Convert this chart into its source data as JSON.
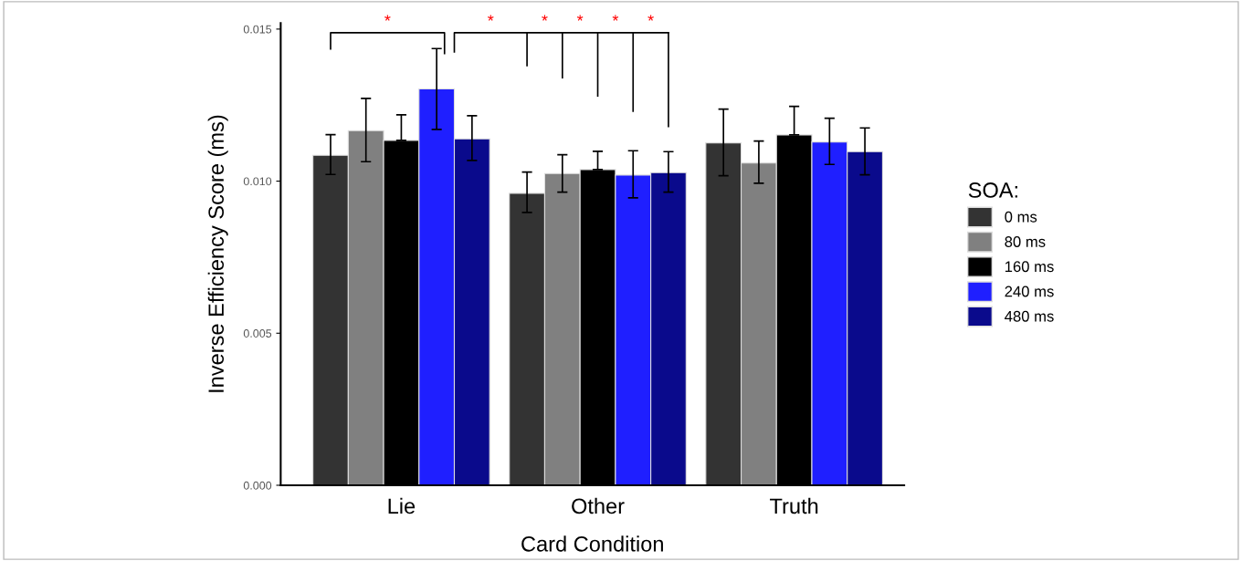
{
  "chart_data": {
    "type": "bar",
    "xlabel": "Card Condition",
    "ylabel": "Inverse Efficiency Score (ms)",
    "legend_title": "SOA:",
    "legend": "right",
    "grid": false,
    "categories": [
      "Lie",
      "Other",
      "Truth"
    ],
    "ylim": [
      0,
      0.0152
    ],
    "yticks": [
      {
        "value": 0,
        "label": "0.000"
      },
      {
        "value": 0.005,
        "label": "0.005"
      },
      {
        "value": 0.01,
        "label": "0.010"
      },
      {
        "value": 0.015,
        "label": "0.015"
      }
    ],
    "series": [
      {
        "name": "0 ms",
        "color": "#333333",
        "values": [
          0.01085,
          0.0096,
          0.01126
        ],
        "errors": [
          [
            0.01022,
            0.01153
          ],
          [
            0.00897,
            0.0103
          ],
          [
            0.01018,
            0.01237
          ]
        ]
      },
      {
        "name": "80 ms",
        "color": "#808080",
        "values": [
          0.01166,
          0.01025,
          0.0106
        ],
        "errors": [
          [
            0.01064,
            0.01272
          ],
          [
            0.00964,
            0.01087
          ],
          [
            0.00993,
            0.01132
          ]
        ]
      },
      {
        "name": "160 ms",
        "color": "#000000",
        "values": [
          0.01134,
          0.01038,
          0.01152
        ],
        "errors": [
          [
            0.01134,
            0.01218
          ],
          [
            0.01038,
            0.01098
          ],
          [
            0.01152,
            0.01246
          ]
        ]
      },
      {
        "name": "240 ms",
        "color": "#1f1fff",
        "values": [
          0.01303,
          0.0102,
          0.01129
        ],
        "errors": [
          [
            0.0117,
            0.01436
          ],
          [
            0.00945,
            0.011
          ],
          [
            0.01055,
            0.01207
          ]
        ]
      },
      {
        "name": "480 ms",
        "color": "#0a0a8c",
        "values": [
          0.01139,
          0.01028,
          0.01097
        ],
        "errors": [
          [
            0.01068,
            0.01215
          ],
          [
            0.00964,
            0.01097
          ],
          [
            0.01021,
            0.01175
          ]
        ]
      }
    ],
    "annotations": [
      "*",
      "*",
      "*",
      "*",
      "*",
      "*"
    ]
  }
}
